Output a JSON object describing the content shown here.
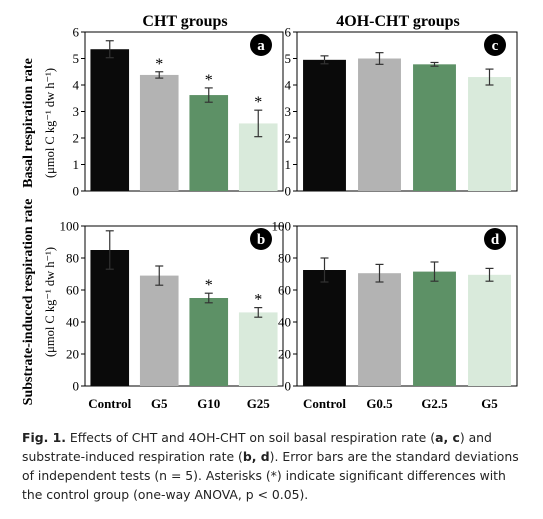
{
  "figure": {
    "group_titles": [
      "CHT groups",
      "4OH-CHT groups"
    ],
    "row_label_top": "Basal respiration rate",
    "row_label_bottom": "Substrate-induced respiration rate",
    "unit_label": "(μmol C kg⁻¹ dw h⁻¹)"
  },
  "caption": {
    "fig_label": "Fig. 1.",
    "text_1": " Effects of CHT and 4OH-CHT on soil basal respiration rate (",
    "ac": "a, c",
    "text_2": ") and substrate-induced respiration rate (",
    "bd": "b, d",
    "text_3": "). Error bars are the standard deviations of independent tests (n = 5). Asterisks (*) indicate significant differences with the control group (one-way ANOVA, p  <  0.05)."
  },
  "colors": {
    "control": "#0a0a0a",
    "low": "#b3b3b3",
    "mid": "#5d9166",
    "high": "#d9eadb"
  },
  "chart_data": [
    {
      "panel": "a",
      "type": "bar",
      "title": "CHT groups",
      "categories": [
        "Control",
        "G5",
        "G10",
        "G25"
      ],
      "values": [
        5.35,
        4.38,
        3.62,
        2.55
      ],
      "errors": [
        0.32,
        0.12,
        0.27,
        0.5
      ],
      "significant": [
        false,
        true,
        true,
        true
      ],
      "ylim": [
        0,
        6
      ],
      "yticks": [
        0,
        1,
        2,
        3,
        4,
        5,
        6
      ],
      "ylabel": "Basal respiration rate (μmol C kg⁻¹ dw h⁻¹)"
    },
    {
      "panel": "c",
      "type": "bar",
      "title": "4OH-CHT groups",
      "categories": [
        "Control",
        "G0.5",
        "G2.5",
        "G5"
      ],
      "values": [
        4.95,
        5.0,
        4.78,
        4.3
      ],
      "errors": [
        0.15,
        0.22,
        0.07,
        0.3
      ],
      "significant": [
        false,
        false,
        false,
        false
      ],
      "ylim": [
        0,
        6
      ],
      "yticks": [
        0,
        1,
        2,
        3,
        4,
        5,
        6
      ]
    },
    {
      "panel": "b",
      "type": "bar",
      "categories": [
        "Control",
        "G5",
        "G10",
        "G25"
      ],
      "values": [
        85,
        69,
        55,
        46
      ],
      "errors": [
        12,
        6,
        3,
        3
      ],
      "significant": [
        false,
        false,
        true,
        true
      ],
      "ylim": [
        0,
        100
      ],
      "yticks": [
        0,
        20,
        40,
        60,
        80,
        100
      ],
      "ylabel": "Substrate-induced respiration rate (μmol C kg⁻¹ dw h⁻¹)"
    },
    {
      "panel": "d",
      "type": "bar",
      "categories": [
        "Control",
        "G0.5",
        "G2.5",
        "G5"
      ],
      "values": [
        72.5,
        70.5,
        71.5,
        69.5
      ],
      "errors": [
        7.5,
        5.5,
        6,
        4
      ],
      "significant": [
        false,
        false,
        false,
        false
      ],
      "ylim": [
        0,
        100
      ],
      "yticks": [
        0,
        20,
        40,
        60,
        80,
        100
      ]
    }
  ]
}
